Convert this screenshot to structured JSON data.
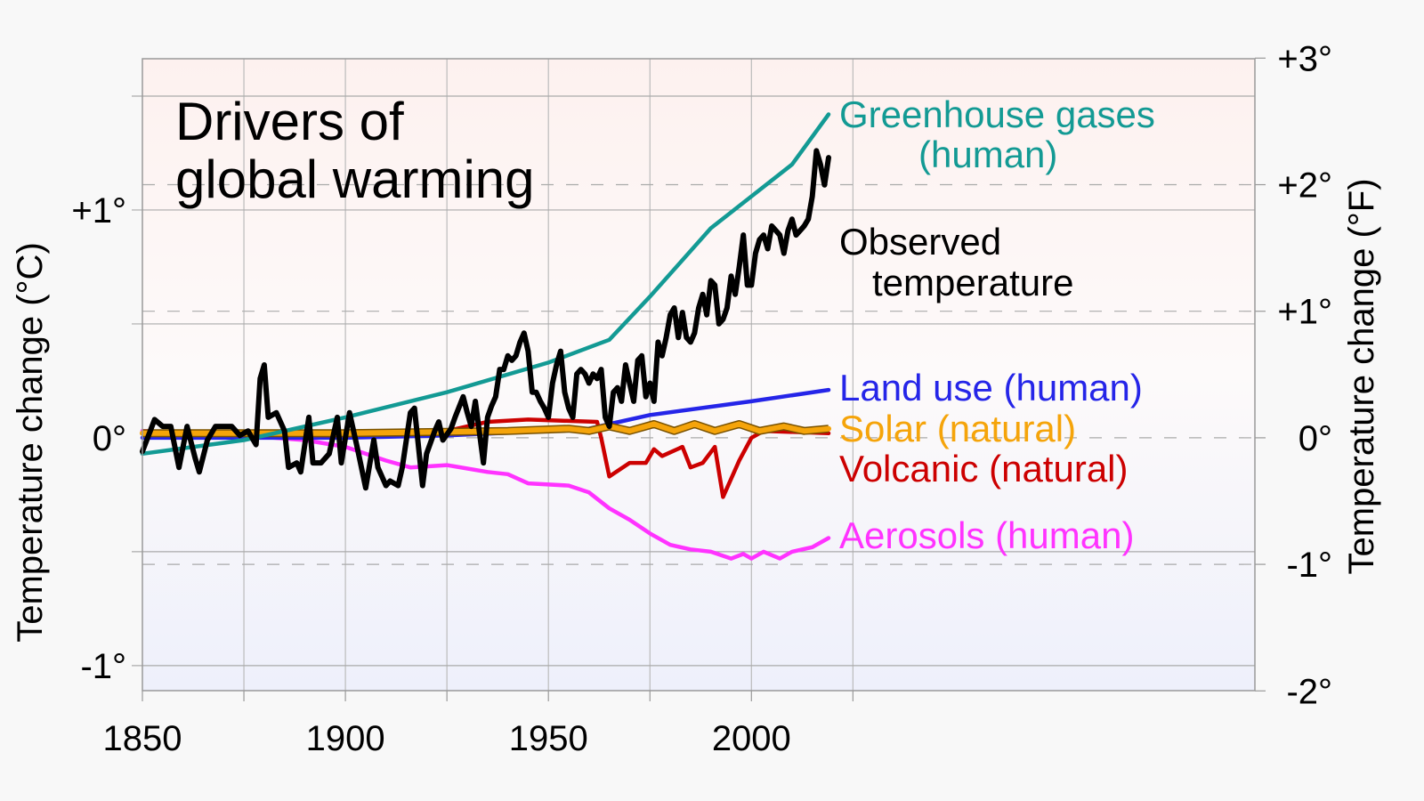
{
  "chart_data": {
    "type": "line",
    "title": [
      "Drivers of",
      "global warming"
    ],
    "ylabel_left": "Temperature change (°C)",
    "ylabel_right": "Temperature change (°F)",
    "xlim": [
      1850,
      2124
    ],
    "ylim": [
      -1.11,
      1.664
    ],
    "x_ticks": [
      1850,
      1900,
      1950,
      2000
    ],
    "x_tick_labels": [
      "1850",
      "1900",
      "1950",
      "2000"
    ],
    "y_ticks_left": [
      1,
      0,
      -1
    ],
    "y_tick_labels_left": [
      "+1°",
      "0°",
      "-1°"
    ],
    "y_ticks_right_F": [
      3,
      2,
      1,
      0,
      -1,
      -2
    ],
    "y_tick_labels_right": [
      "+3°",
      "+2°",
      "+1°",
      "0°",
      "-1°",
      "-2°"
    ],
    "grid": true,
    "background": {
      "top": "#fdf1ef",
      "bottom": "#eef0fb"
    },
    "series": [
      {
        "name": "Aerosols (human)",
        "label_lines": [
          "Aerosols (human)"
        ],
        "color": "#ff33ff",
        "x": [
          1850,
          1875,
          1890,
          1900,
          1910,
          1916,
          1925,
          1935,
          1940,
          1945,
          1955,
          1960,
          1965,
          1970,
          1975,
          1980,
          1985,
          1990,
          1995,
          1998,
          2000,
          2003,
          2007,
          2010,
          2015,
          2019
        ],
        "y": [
          0.03,
          0.01,
          -0.01,
          -0.04,
          -0.1,
          -0.13,
          -0.12,
          -0.15,
          -0.16,
          -0.2,
          -0.21,
          -0.24,
          -0.31,
          -0.36,
          -0.42,
          -0.47,
          -0.49,
          -0.5,
          -0.53,
          -0.51,
          -0.53,
          -0.5,
          -0.53,
          -0.5,
          -0.48,
          -0.44
        ]
      },
      {
        "name": "Land use (human)",
        "label_lines": [
          "Land use (human)"
        ],
        "color": "#2525e8",
        "x": [
          1850,
          1900,
          1925,
          1950,
          1960,
          1965,
          1975,
          2000,
          2019
        ],
        "y": [
          0.0,
          0.0,
          0.01,
          0.03,
          0.04,
          0.06,
          0.1,
          0.16,
          0.21
        ]
      },
      {
        "name": "Volcanic (natural)",
        "label_lines": [
          "Volcanic (natural)"
        ],
        "color": "#cc0000",
        "x": [
          1850,
          1900,
          1925,
          1935,
          1945,
          1962,
          1963,
          1965,
          1970,
          1974,
          1976,
          1978,
          1983,
          1985,
          1988,
          1991,
          1993,
          1997,
          2000,
          2003,
          2019
        ],
        "y": [
          0.02,
          0.01,
          0.03,
          0.07,
          0.08,
          0.07,
          0.0,
          -0.17,
          -0.11,
          -0.11,
          -0.05,
          -0.08,
          -0.04,
          -0.13,
          -0.11,
          -0.04,
          -0.26,
          -0.1,
          0.0,
          0.03,
          0.02
        ]
      },
      {
        "name": "Solar (natural)",
        "label_lines": [
          "Solar (natural)"
        ],
        "color": "#f5a40a",
        "x": [
          1850,
          1900,
          1940,
          1955,
          1960,
          1965,
          1970,
          1976,
          1981,
          1986,
          1991,
          1997,
          2002,
          2008,
          2013,
          2019
        ],
        "y": [
          0.02,
          0.02,
          0.03,
          0.04,
          0.03,
          0.05,
          0.03,
          0.06,
          0.03,
          0.06,
          0.03,
          0.06,
          0.03,
          0.05,
          0.03,
          0.04
        ]
      },
      {
        "name": "Greenhouse gases (human)",
        "label_lines": [
          "Greenhouse gases",
          "(human)"
        ],
        "color": "#139a94",
        "x": [
          1850,
          1875,
          1900,
          1925,
          1950,
          1965,
          1975,
          1990,
          2000,
          2010,
          2019
        ],
        "y": [
          -0.07,
          -0.01,
          0.09,
          0.2,
          0.33,
          0.43,
          0.62,
          0.92,
          1.06,
          1.2,
          1.42
        ]
      },
      {
        "name": "Observed temperature",
        "label_lines": [
          "Observed",
          "temperature"
        ],
        "color": "#000000",
        "x": [
          1850,
          1853,
          1855,
          1857,
          1859,
          1861,
          1863,
          1864,
          1866,
          1868,
          1870,
          1872,
          1874,
          1876,
          1878,
          1879,
          1880,
          1881,
          1883,
          1885,
          1886,
          1888,
          1889,
          1891,
          1892,
          1894,
          1896,
          1898,
          1899,
          1901,
          1903,
          1905,
          1907,
          1908,
          1910,
          1911,
          1913,
          1914,
          1916,
          1917,
          1919,
          1920,
          1922,
          1923,
          1924,
          1926,
          1927,
          1929,
          1930,
          1931,
          1932,
          1934,
          1935,
          1936,
          1937,
          1938,
          1939,
          1940,
          1941,
          1942,
          1943,
          1944,
          1945,
          1946,
          1947,
          1948,
          1949,
          1950,
          1951,
          1952,
          1953,
          1954,
          1955,
          1956,
          1957,
          1958,
          1959,
          1960,
          1961,
          1962,
          1963,
          1964,
          1965,
          1966,
          1967,
          1968,
          1969,
          1970,
          1971,
          1972,
          1973,
          1974,
          1975,
          1976,
          1977,
          1978,
          1979,
          1980,
          1981,
          1982,
          1983,
          1984,
          1985,
          1986,
          1987,
          1988,
          1989,
          1990,
          1991,
          1992,
          1993,
          1994,
          1995,
          1996,
          1997,
          1998,
          1999,
          2000,
          2001,
          2002,
          2003,
          2004,
          2005,
          2006,
          2007,
          2008,
          2009,
          2010,
          2011,
          2012,
          2013,
          2014,
          2015,
          2016,
          2017,
          2018,
          2019
        ],
        "y": [
          -0.06,
          0.08,
          0.05,
          0.05,
          -0.13,
          0.05,
          -0.09,
          -0.15,
          -0.01,
          0.05,
          0.05,
          0.05,
          0.01,
          0.03,
          -0.03,
          0.26,
          0.32,
          0.09,
          0.11,
          0.03,
          -0.13,
          -0.11,
          -0.15,
          0.09,
          -0.11,
          -0.11,
          -0.07,
          0.09,
          -0.11,
          0.11,
          -0.05,
          -0.22,
          -0.01,
          -0.13,
          -0.21,
          -0.19,
          -0.21,
          -0.13,
          0.11,
          0.13,
          -0.21,
          -0.07,
          0.03,
          0.07,
          -0.01,
          0.04,
          0.09,
          0.18,
          0.11,
          0.05,
          0.16,
          -0.11,
          0.09,
          0.14,
          0.18,
          0.3,
          0.3,
          0.36,
          0.34,
          0.36,
          0.42,
          0.46,
          0.38,
          0.2,
          0.2,
          0.16,
          0.13,
          0.09,
          0.24,
          0.32,
          0.38,
          0.2,
          0.13,
          0.09,
          0.28,
          0.3,
          0.28,
          0.24,
          0.28,
          0.26,
          0.3,
          0.09,
          0.05,
          0.2,
          0.22,
          0.16,
          0.32,
          0.24,
          0.16,
          0.34,
          0.36,
          0.18,
          0.24,
          0.16,
          0.42,
          0.36,
          0.44,
          0.54,
          0.57,
          0.44,
          0.55,
          0.44,
          0.42,
          0.46,
          0.57,
          0.63,
          0.54,
          0.69,
          0.67,
          0.5,
          0.52,
          0.57,
          0.71,
          0.63,
          0.75,
          0.89,
          0.67,
          0.67,
          0.81,
          0.87,
          0.89,
          0.83,
          0.93,
          0.91,
          0.89,
          0.81,
          0.91,
          0.96,
          0.89,
          0.91,
          0.93,
          0.96,
          1.06,
          1.26,
          1.2,
          1.11,
          1.23
        ]
      }
    ]
  }
}
